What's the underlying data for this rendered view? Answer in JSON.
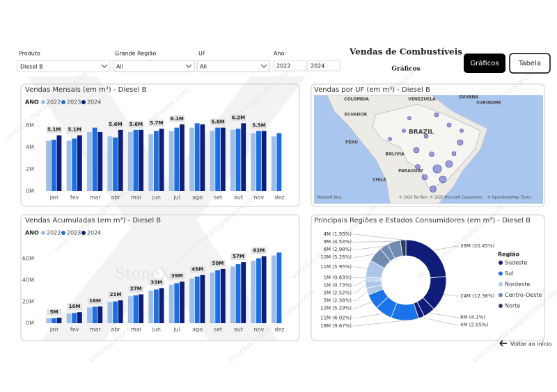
{
  "watermark": "vinicius.morais@stonex.com",
  "logo": "StoneX",
  "header": {
    "title": "Vendas de Combustíveis",
    "subtitle": "Gráficos"
  },
  "buttons": [
    "Gráficos",
    "Tabela"
  ],
  "filters": [
    {
      "label": "Produto",
      "value": "Diesel B"
    },
    {
      "label": "Grande Região",
      "value": "All"
    },
    {
      "label": "UF",
      "value": "All"
    },
    {
      "label": "Ano",
      "value": [
        "2022",
        "2024"
      ]
    }
  ],
  "back": "Voltar ao início",
  "map": {
    "title": "Vendas por UF (em m³) - Diesel B",
    "labels": [
      "COLOMBIA",
      "VENEZUELA",
      "GUYANA",
      "SURINAME",
      "ECUADOR",
      "PERU",
      "BRAZIL",
      "BOLIVIA",
      "PARAGUAY",
      "CHILE"
    ],
    "attribution": [
      "Microsoft Bing",
      "© 2024 TomTom, © 2025 Microsoft Corporation,",
      "© OpenStreetMap",
      "Terms"
    ]
  },
  "chart_data": [
    {
      "type": "bar",
      "title": "Vendas Mensais (em m³) - Diesel B",
      "legend_title": "ANO",
      "categories": [
        "jan",
        "fev",
        "mar",
        "abr",
        "mai",
        "jun",
        "jul",
        "ago",
        "set",
        "out",
        "nov",
        "dez"
      ],
      "series": [
        {
          "name": "2022",
          "color": "#9fbde9",
          "values": [
            4.6,
            4.6,
            5.4,
            5.0,
            5.4,
            5.2,
            5.5,
            5.8,
            5.5,
            5.6,
            5.3,
            5.0
          ]
        },
        {
          "name": "2023",
          "color": "#1b6fe0",
          "values": [
            4.7,
            4.8,
            5.8,
            4.9,
            5.6,
            5.5,
            5.8,
            6.2,
            5.8,
            5.7,
            5.5,
            5.3
          ]
        },
        {
          "name": "2024",
          "color": "#0d1f7a",
          "values": [
            5.1,
            5.1,
            5.4,
            5.6,
            5.6,
            5.7,
            6.1,
            6.1,
            5.8,
            6.2,
            5.5,
            null
          ],
          "value_labels": [
            "5.1M",
            "5.1M",
            null,
            "5.6M",
            "5.6M",
            "5.7M",
            "6.1M",
            null,
            "5.8M",
            "6.2M",
            "5.5M",
            null
          ]
        }
      ],
      "ylim": [
        0,
        8
      ],
      "yticks": [
        {
          "value": 0,
          "label": "0M"
        },
        {
          "value": 2,
          "label": "2M"
        },
        {
          "value": 4,
          "label": "4M"
        },
        {
          "value": 6,
          "label": "6M"
        }
      ],
      "grid": false
    },
    {
      "type": "bar",
      "title": "Vendas Acumuladas (em m³) - Diesel B",
      "legend_title": "ANO",
      "categories": [
        "jan",
        "fev",
        "mar",
        "abr",
        "mai",
        "jun",
        "jul",
        "ago",
        "set",
        "out",
        "nov",
        "dez"
      ],
      "series": [
        {
          "name": "2022",
          "color": "#9fbde9",
          "values": [
            4.6,
            9.2,
            14.6,
            19.6,
            25.0,
            30.2,
            35.7,
            41.5,
            47.0,
            52.6,
            57.9,
            62.9
          ]
        },
        {
          "name": "2023",
          "color": "#1b6fe0",
          "values": [
            4.7,
            9.5,
            15.3,
            20.2,
            25.8,
            31.3,
            37.1,
            43.3,
            49.1,
            54.8,
            60.3,
            65.6
          ]
        },
        {
          "name": "2024",
          "color": "#0d1f7a",
          "values": [
            5.1,
            10.2,
            15.6,
            21.2,
            26.8,
            32.6,
            38.6,
            44.7,
            50.4,
            56.7,
            62.2,
            null
          ],
          "value_labels": [
            "5M",
            "10M",
            "16M",
            "21M",
            "27M",
            "33M",
            "39M",
            "45M",
            "50M",
            "57M",
            "62M",
            null
          ]
        }
      ],
      "ylim": [
        0,
        80
      ],
      "yticks": [
        {
          "value": 0,
          "label": "0M"
        },
        {
          "value": 20,
          "label": "20M"
        },
        {
          "value": 40,
          "label": "40M"
        },
        {
          "value": 60,
          "label": "60M"
        }
      ],
      "grid": false
    },
    {
      "type": "pie",
      "title": "Principais Regiões e Estados Consumidores (em m³) - Diesel B",
      "legend_title": "Região",
      "legend": [
        {
          "name": "Sudeste",
          "color": "#0f1c78"
        },
        {
          "name": "Sul",
          "color": "#1a73e8"
        },
        {
          "name": "Nordeste",
          "color": "#aec6e8"
        },
        {
          "name": "Centro-Oeste",
          "color": "#6f8bb0"
        },
        {
          "name": "Norte",
          "color": "#2b3f5e"
        }
      ],
      "values": [
        39.0,
        23.57,
        7.82,
        3.91,
        18.44,
        11.48,
        10.09,
        4.54,
        4.81,
        1.39,
        1.2,
        11.35,
        10.03,
        5.68,
        8.64,
        3.68
      ],
      "value_labels": [
        "39M (20.45%)",
        "24M (12.36%)",
        "8M (4.1%)",
        "4M (2.05%)",
        "18M (9.67%)",
        "11M (6.02%)",
        "10M (5.29%)",
        "5M (2.38%)",
        "5M (2.52%)",
        "1M (0.73%)",
        "1M (0.63%)",
        "11M (5.95%)",
        "10M (5.26%)",
        "6M (2.98%)",
        "9M (4.53%)",
        "4M (1.93%)"
      ],
      "colors": [
        "#0f1c78",
        "#0f1c78",
        "#0f1c78",
        "#0f1c78",
        "#1a73e8",
        "#1a73e8",
        "#1a73e8",
        "#aec6e8",
        "#aec6e8",
        "#aec6e8",
        "#aec6e8",
        "#aec6e8",
        "#6f8bb0",
        "#6f8bb0",
        "#6f8bb0",
        "#2b3f5e"
      ]
    }
  ]
}
